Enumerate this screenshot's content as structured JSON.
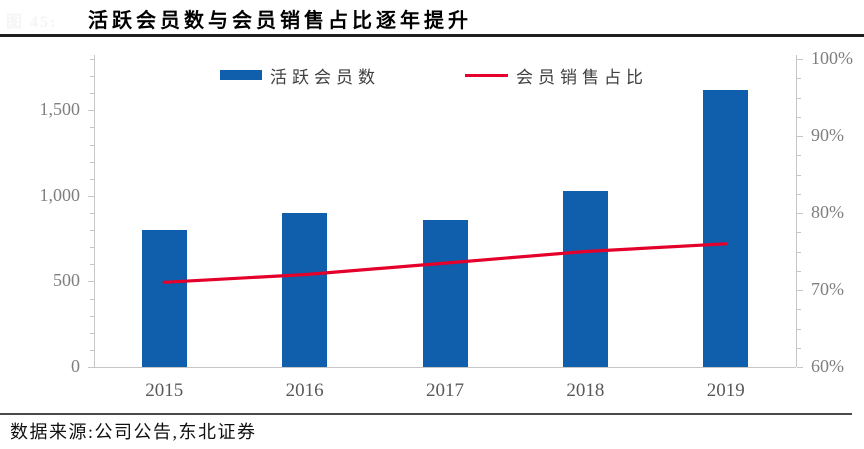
{
  "figure_label": "图 45:",
  "source_note": "数据来源:公司公告,东北证券",
  "colors": {
    "bar": "#0F5FAC",
    "line": "#E4002B",
    "axis_line": "#C6C6C6",
    "tick_label": "#7F7F7F",
    "year_label": "#595959"
  },
  "chart_data": {
    "type": "bar+line",
    "title": "活跃会员数与会员销售占比逐年提升",
    "categories": [
      "2015",
      "2016",
      "2017",
      "2018",
      "2019"
    ],
    "series": [
      {
        "name": "活跃会员数",
        "type": "bar",
        "axis": "left",
        "values": [
          800,
          900,
          860,
          1030,
          1620
        ]
      },
      {
        "name": "会员销售占比",
        "type": "line",
        "axis": "right",
        "values": [
          71,
          72,
          73.5,
          75,
          76
        ]
      }
    ],
    "left_axis": {
      "range": [
        0,
        1800
      ],
      "major_step": 500,
      "minor_step": 100,
      "ticks": [
        {
          "v": 0,
          "label": "0"
        },
        {
          "v": 500,
          "label": "500"
        },
        {
          "v": 1000,
          "label": "1,000"
        },
        {
          "v": 1500,
          "label": "1,500"
        }
      ]
    },
    "right_axis": {
      "range": [
        60,
        100
      ],
      "major_step": 10,
      "minor_step": 2.5,
      "ticks": [
        {
          "v": 60,
          "label": "60%"
        },
        {
          "v": 70,
          "label": "70%"
        },
        {
          "v": 80,
          "label": "80%"
        },
        {
          "v": 90,
          "label": "90%"
        },
        {
          "v": 100,
          "label": "100%"
        }
      ]
    },
    "legend_position": "top",
    "grid": false
  }
}
